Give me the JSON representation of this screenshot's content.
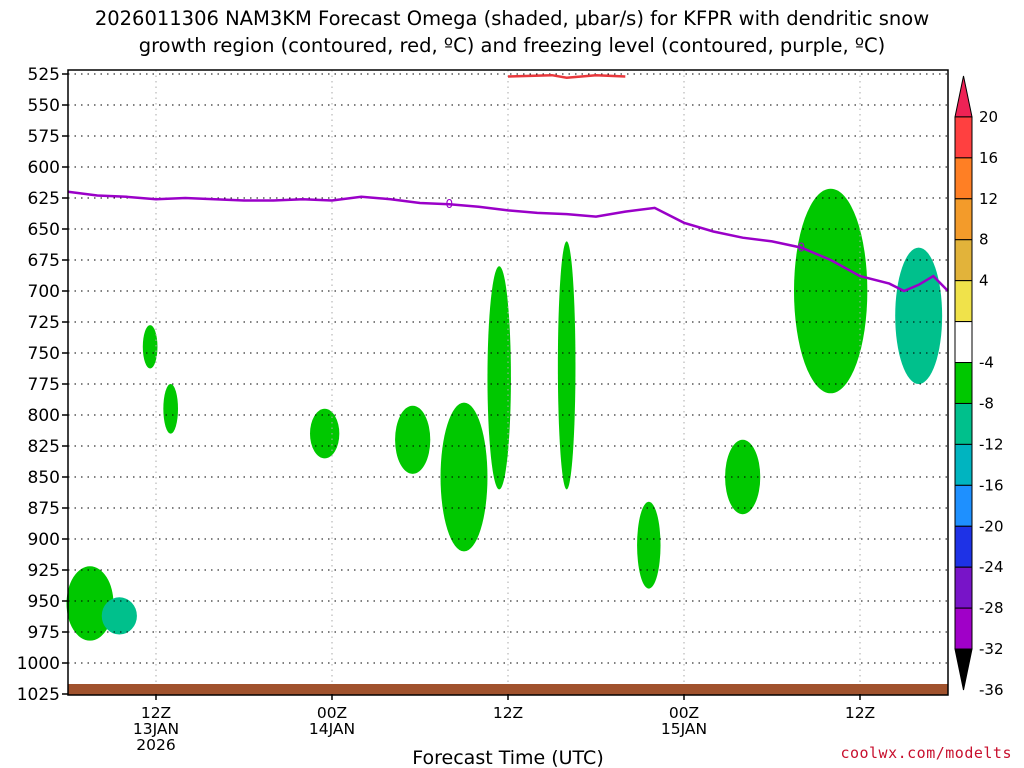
{
  "title_line1": "2026011306 NAM3KM Forecast Omega (shaded, μbar/s) for KFPR with dendritic snow",
  "title_line2": "growth region (contoured, red, ºC) and freezing level (contoured, purple, ºC)",
  "credit": "coolwx.com/modelts",
  "colors": {
    "freezing_level": "#9a00c8",
    "dgz": "#e8383c",
    "ground": "#a0522d"
  },
  "chart_data": {
    "type": "heatmap",
    "xlabel": "Forecast Time (UTC)",
    "ylabel": "",
    "x_range_hours": [
      6,
      66
    ],
    "ylim": [
      1025,
      525
    ],
    "y_scale": "pressure (hPa)",
    "grid": true,
    "y_ticks": [
      "525",
      "550",
      "575",
      "600",
      "625",
      "650",
      "675",
      "700",
      "725",
      "750",
      "775",
      "800",
      "825",
      "850",
      "875",
      "900",
      "925",
      "950",
      "975",
      "1000",
      "1025"
    ],
    "x_ticks": [
      {
        "hour": 12,
        "line1": "12Z",
        "line2": "13JAN",
        "line3": "2026"
      },
      {
        "hour": 24,
        "line1": "00Z",
        "line2": "14JAN",
        "line3": ""
      },
      {
        "hour": 36,
        "line1": "12Z",
        "line2": "",
        "line3": ""
      },
      {
        "hour": 48,
        "line1": "00Z",
        "line2": "15JAN",
        "line3": ""
      },
      {
        "hour": 60,
        "line1": "12Z",
        "line2": "",
        "line3": ""
      }
    ],
    "colorbar": {
      "labels": [
        "20",
        "16",
        "12",
        "8",
        "4",
        "-4",
        "-8",
        "-12",
        "-16",
        "-20",
        "-24",
        "-28",
        "-32",
        "-36"
      ],
      "colors": [
        "#ee2255",
        "#ff4040",
        "#ff7f24",
        "#f39b2a",
        "#e2b33a",
        "#f0e24a",
        "#ffffff",
        "#00c800",
        "#00c08c",
        "#00b4c0",
        "#1e90ff",
        "#1e32e6",
        "#7814c8",
        "#a000c8",
        "#a0a0a0"
      ]
    },
    "freezing_level": [
      [
        6,
        620
      ],
      [
        8,
        623
      ],
      [
        10,
        624
      ],
      [
        12,
        626
      ],
      [
        14,
        625
      ],
      [
        16,
        626
      ],
      [
        18,
        627
      ],
      [
        20,
        627
      ],
      [
        22,
        626
      ],
      [
        24,
        627
      ],
      [
        26,
        624
      ],
      [
        28,
        626
      ],
      [
        30,
        629
      ],
      [
        32,
        630
      ],
      [
        34,
        632
      ],
      [
        36,
        635
      ],
      [
        38,
        637
      ],
      [
        40,
        638
      ],
      [
        42,
        640
      ],
      [
        44,
        636
      ],
      [
        46,
        633
      ],
      [
        48,
        645
      ],
      [
        50,
        652
      ],
      [
        52,
        657
      ],
      [
        54,
        660
      ],
      [
        56,
        665
      ],
      [
        58,
        675
      ],
      [
        60,
        688
      ],
      [
        62,
        694
      ],
      [
        63,
        700
      ],
      [
        64,
        695
      ],
      [
        65,
        688
      ],
      [
        66,
        700
      ]
    ],
    "freezing_level_label": "0",
    "omega_areas": [
      {
        "name": "upward-motion",
        "value": -6,
        "x": 7.5,
        "p": 952,
        "w": 1.6,
        "h": 60
      },
      {
        "name": "upward-motion",
        "value": -10,
        "x": 9.5,
        "p": 962,
        "w": 1.2,
        "h": 30
      },
      {
        "name": "upward-motion",
        "value": -6,
        "x": 11.6,
        "p": 745,
        "w": 0.5,
        "h": 35
      },
      {
        "name": "upward-motion",
        "value": -6,
        "x": 13.0,
        "p": 795,
        "w": 0.5,
        "h": 40
      },
      {
        "name": "upward-motion",
        "value": -6,
        "x": 23.5,
        "p": 815,
        "w": 1.0,
        "h": 40
      },
      {
        "name": "upward-motion",
        "value": -6,
        "x": 29.5,
        "p": 820,
        "w": 1.2,
        "h": 55
      },
      {
        "name": "upward-motion",
        "value": -6,
        "x": 33.0,
        "p": 850,
        "w": 1.6,
        "h": 120
      },
      {
        "name": "upward-motion",
        "value": -6,
        "x": 35.4,
        "p": 770,
        "w": 0.8,
        "h": 180
      },
      {
        "name": "upward-motion",
        "value": -6,
        "x": 40.0,
        "p": 760,
        "w": 0.6,
        "h": 200
      },
      {
        "name": "upward-motion",
        "value": -6,
        "x": 45.6,
        "p": 905,
        "w": 0.8,
        "h": 70
      },
      {
        "name": "upward-motion",
        "value": -6,
        "x": 52.0,
        "p": 850,
        "w": 1.2,
        "h": 60
      },
      {
        "name": "upward-motion",
        "value": -6,
        "x": 58.0,
        "p": 700,
        "w": 2.5,
        "h": 165
      },
      {
        "name": "upward-motion",
        "value": -12,
        "x": 64.0,
        "p": 720,
        "w": 1.6,
        "h": 110
      }
    ],
    "dgz_contour": [
      [
        36,
        527
      ],
      [
        39,
        526
      ],
      [
        40,
        528
      ],
      [
        42,
        526
      ],
      [
        44,
        527
      ]
    ],
    "dgz_label": ""
  }
}
